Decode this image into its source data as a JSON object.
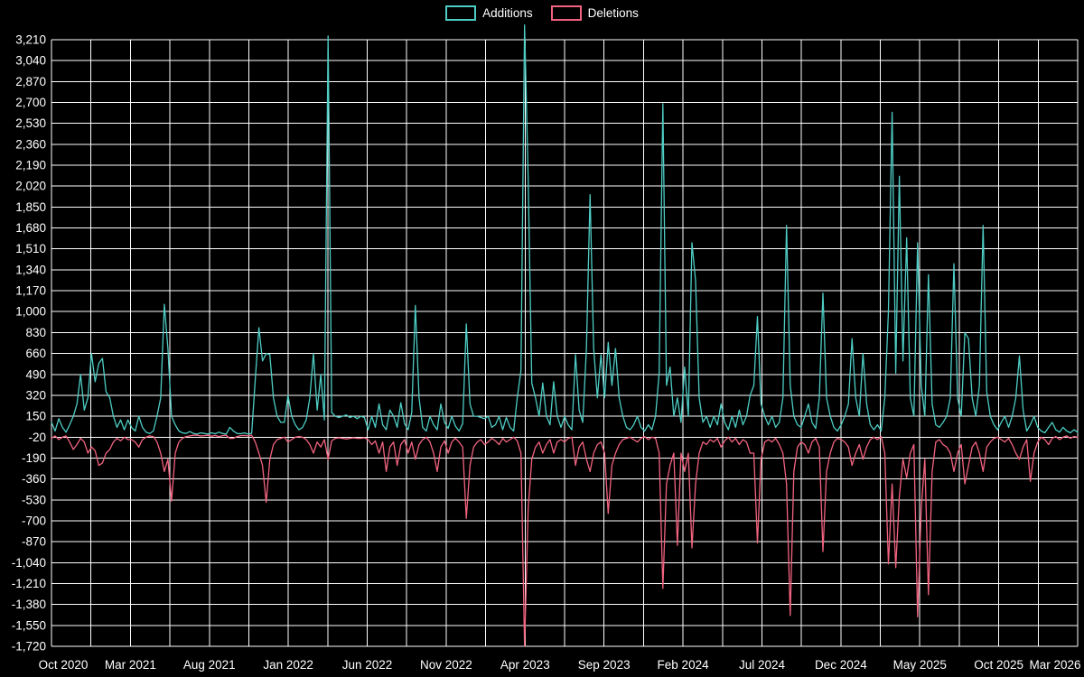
{
  "background": "#000000",
  "chart_data": {
    "type": "line",
    "title": "",
    "legend_position": "top-center",
    "grid": true,
    "grid_color": "#ffffff",
    "text_color": "#ffffff",
    "y_axis": {
      "min": -1720,
      "max": 3210,
      "step": 170,
      "tick_format": "comma"
    },
    "x_axis": {
      "labels": [
        "Oct 2020",
        "Mar 2021",
        "Aug 2021",
        "Jan 2022",
        "Jun 2022",
        "Nov 2022",
        "Apr 2023",
        "Sep 2023",
        "Feb 2024",
        "Jul 2024",
        "Dec 2024",
        "May 2025",
        "Oct 2025",
        "Mar 2026"
      ],
      "unit": "week",
      "gridlines_per_label_interval": 2
    },
    "series": [
      {
        "name": "Additions",
        "color": "#4ecdc4",
        "values": [
          100,
          30,
          130,
          60,
          20,
          80,
          150,
          250,
          490,
          200,
          300,
          660,
          430,
          580,
          620,
          350,
          300,
          150,
          60,
          120,
          40,
          120,
          60,
          30,
          150,
          60,
          20,
          10,
          30,
          150,
          300,
          1060,
          700,
          150,
          80,
          30,
          15,
          10,
          25,
          10,
          5,
          15,
          10,
          5,
          15,
          8,
          20,
          10,
          5,
          60,
          30,
          10,
          8,
          15,
          5,
          10,
          450,
          870,
          600,
          660,
          650,
          300,
          150,
          100,
          100,
          320,
          150,
          80,
          40,
          60,
          120,
          300,
          660,
          200,
          490,
          120,
          3240,
          180,
          150,
          140,
          150,
          160,
          140,
          150,
          130,
          150,
          140,
          40,
          150,
          60,
          250,
          80,
          40,
          200,
          150,
          60,
          260,
          90,
          40,
          180,
          1050,
          300,
          60,
          30,
          150,
          80,
          40,
          250,
          100,
          50,
          150,
          70,
          30,
          90,
          900,
          250,
          150,
          150,
          140,
          130,
          150,
          60,
          80,
          150,
          40,
          140,
          60,
          30,
          300,
          520,
          3330,
          2080,
          420,
          300,
          150,
          420,
          150,
          80,
          430,
          150,
          60,
          150,
          80,
          40,
          650,
          200,
          100,
          700,
          1950,
          700,
          300,
          650,
          300,
          750,
          400,
          700,
          300,
          150,
          60,
          40,
          80,
          150,
          60,
          30,
          80,
          40,
          150,
          500,
          2690,
          400,
          550,
          150,
          300,
          100,
          550,
          150,
          1560,
          1250,
          300,
          100,
          150,
          60,
          150,
          80,
          250,
          100,
          40,
          150,
          60,
          200,
          80,
          150,
          320,
          400,
          960,
          250,
          150,
          80,
          150,
          60,
          100,
          300,
          1700,
          400,
          150,
          80,
          60,
          150,
          250,
          100,
          50,
          300,
          1150,
          300,
          150,
          60,
          30,
          80,
          150,
          250,
          780,
          300,
          150,
          660,
          250,
          80,
          40,
          80,
          30,
          300,
          1000,
          2620,
          500,
          2100,
          600,
          1600,
          300,
          150,
          1560,
          400,
          150,
          1300,
          250,
          80,
          60,
          100,
          150,
          300,
          1390,
          300,
          150,
          830,
          780,
          300,
          150,
          400,
          1700,
          350,
          150,
          80,
          40,
          100,
          150,
          60,
          150,
          300,
          640,
          200,
          30,
          80,
          150,
          60,
          30,
          15,
          60,
          100,
          40,
          20,
          60,
          30,
          15,
          40,
          20
        ]
      },
      {
        "name": "Deletions",
        "color": "#f2637f",
        "values": [
          -30,
          -10,
          -40,
          -20,
          -10,
          -60,
          -120,
          -80,
          -30,
          -60,
          -150,
          -100,
          -130,
          -250,
          -230,
          -150,
          -120,
          -60,
          -30,
          -50,
          -20,
          -40,
          -40,
          -60,
          -100,
          -40,
          -20,
          -10,
          -15,
          -60,
          -150,
          -300,
          -200,
          -540,
          -150,
          -60,
          -30,
          -15,
          -10,
          -5,
          -5,
          -10,
          -8,
          -5,
          -12,
          -6,
          -15,
          -8,
          -5,
          -30,
          -30,
          -15,
          -8,
          -6,
          -10,
          -5,
          -60,
          -150,
          -250,
          -550,
          -200,
          -80,
          -40,
          -30,
          -20,
          -60,
          -40,
          -20,
          -15,
          -20,
          -40,
          -80,
          -150,
          -60,
          -100,
          -40,
          -200,
          -50,
          -30,
          -25,
          -30,
          -35,
          -30,
          -25,
          -30,
          -30,
          -25,
          -40,
          -80,
          -50,
          -150,
          -60,
          -300,
          -100,
          -60,
          -250,
          -80,
          -40,
          -150,
          -60,
          -200,
          -80,
          -40,
          -20,
          -60,
          -150,
          -300,
          -100,
          -50,
          -150,
          -60,
          -30,
          -60,
          -100,
          -680,
          -250,
          -100,
          -60,
          -40,
          -80,
          -60,
          -30,
          -50,
          -80,
          -30,
          -60,
          -40,
          -20,
          -50,
          -150,
          -1720,
          -600,
          -200,
          -100,
          -60,
          -150,
          -80,
          -40,
          -150,
          -60,
          -40,
          -60,
          -30,
          -20,
          -250,
          -100,
          -60,
          -200,
          -300,
          -150,
          -80,
          -60,
          -150,
          -640,
          -250,
          -150,
          -80,
          -40,
          -30,
          -20,
          -40,
          -60,
          -30,
          -15,
          -40,
          -20,
          -30,
          -150,
          -1250,
          -400,
          -250,
          -150,
          -900,
          -150,
          -300,
          -150,
          -920,
          -400,
          -150,
          -60,
          -80,
          -40,
          -60,
          -30,
          -100,
          -50,
          -20,
          -60,
          -30,
          -80,
          -40,
          -60,
          -150,
          -150,
          -880,
          -200,
          -60,
          -40,
          -60,
          -30,
          -80,
          -150,
          -400,
          -1470,
          -300,
          -100,
          -60,
          -80,
          -150,
          -60,
          -30,
          -100,
          -950,
          -300,
          -150,
          -60,
          -30,
          -40,
          -60,
          -100,
          -250,
          -150,
          -80,
          -200,
          -100,
          -40,
          -20,
          -40,
          -15,
          -150,
          -1050,
          -400,
          -1080,
          -500,
          -200,
          -350,
          -150,
          -80,
          -1480,
          -600,
          -200,
          -1300,
          -300,
          -60,
          -40,
          -80,
          -100,
          -150,
          -300,
          -150,
          -80,
          -400,
          -250,
          -100,
          -60,
          -150,
          -300,
          -100,
          -60,
          -30,
          -20,
          -40,
          -60,
          -30,
          -80,
          -150,
          -200,
          -100,
          -40,
          -380,
          -150,
          -60,
          -20,
          -40,
          -80,
          -30,
          -15,
          -40,
          -20,
          -10,
          -30,
          -15,
          -20
        ]
      }
    ]
  }
}
